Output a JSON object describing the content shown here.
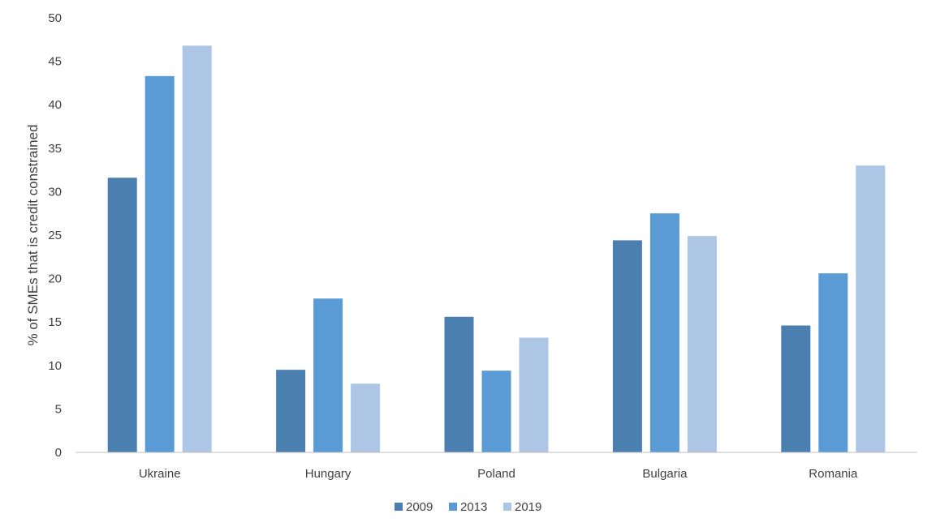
{
  "chart_data": {
    "type": "bar",
    "title": "",
    "xlabel": "",
    "ylabel": "% of SMEs that is credit constrained",
    "categories": [
      "Ukraine",
      "Hungary",
      "Poland",
      "Bulgaria",
      "Romania"
    ],
    "series": [
      {
        "name": "2009",
        "color": "#4a7fb0",
        "values": [
          31.6,
          9.5,
          15.6,
          24.4,
          14.6
        ]
      },
      {
        "name": "2013",
        "color": "#5b9bd5",
        "values": [
          43.3,
          17.7,
          9.4,
          27.5,
          20.6
        ]
      },
      {
        "name": "2019",
        "color": "#adc6e5",
        "values": [
          46.8,
          7.9,
          13.2,
          24.9,
          33.0
        ]
      }
    ],
    "ylim": [
      0,
      50
    ],
    "yticks": [
      0,
      5,
      10,
      15,
      20,
      25,
      30,
      35,
      40,
      45,
      50
    ],
    "grid": false,
    "legend_position": "bottom"
  }
}
